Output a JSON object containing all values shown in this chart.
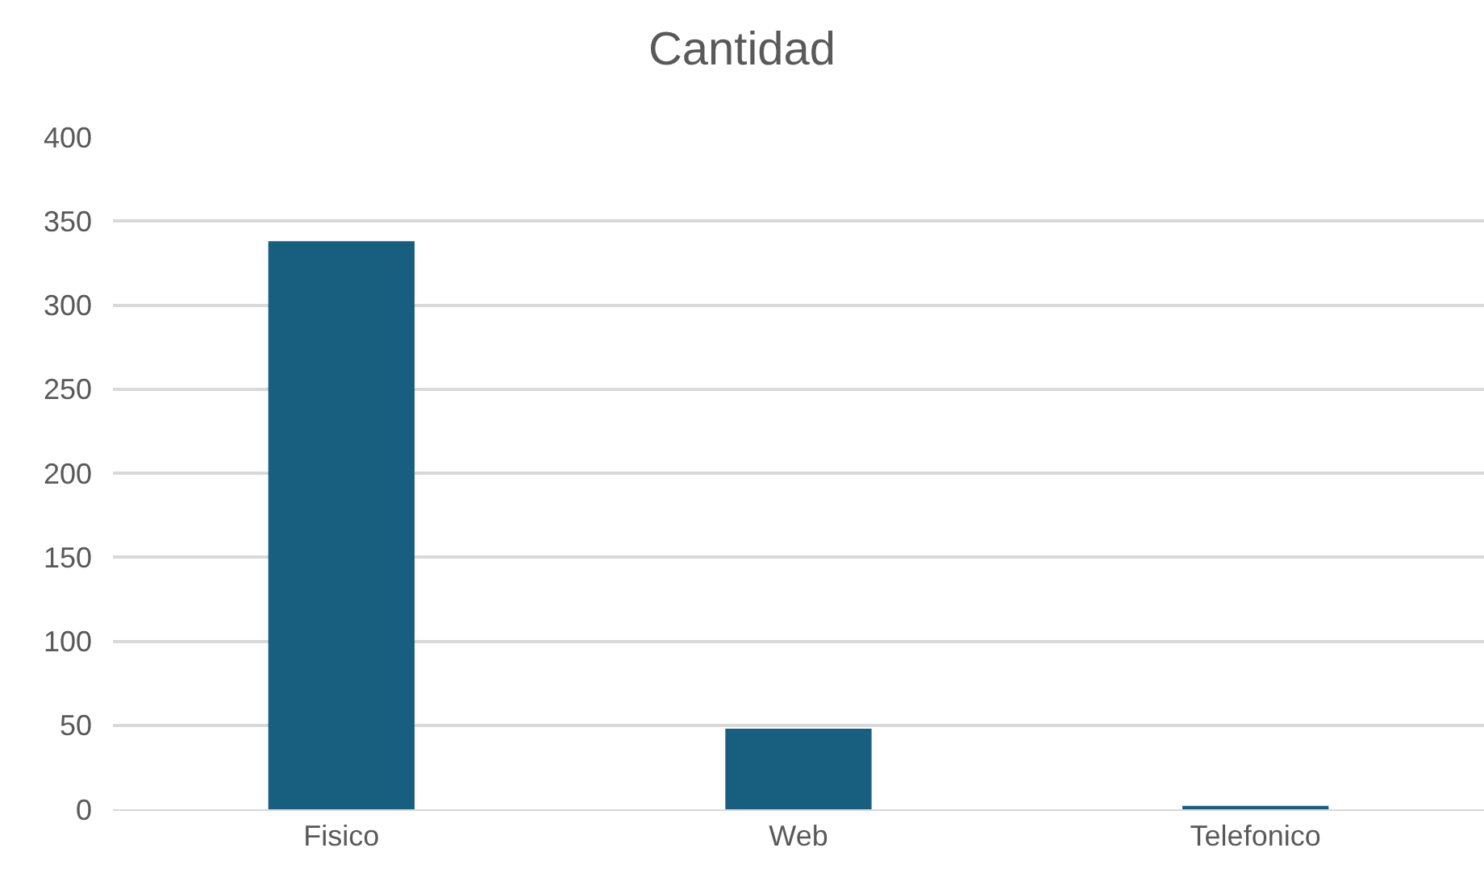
{
  "chart_data": {
    "type": "bar",
    "title": "Cantidad",
    "categories": [
      "Fisico",
      "Web",
      "Telefonico"
    ],
    "series": [
      {
        "color": "#185e7e",
        "values": [
          338,
          48,
          2
        ]
      }
    ],
    "ylim": [
      0,
      400
    ],
    "yticks": [
      0,
      50,
      100,
      150,
      200,
      250,
      300,
      350,
      400
    ],
    "grid": "y",
    "legend": false
  }
}
